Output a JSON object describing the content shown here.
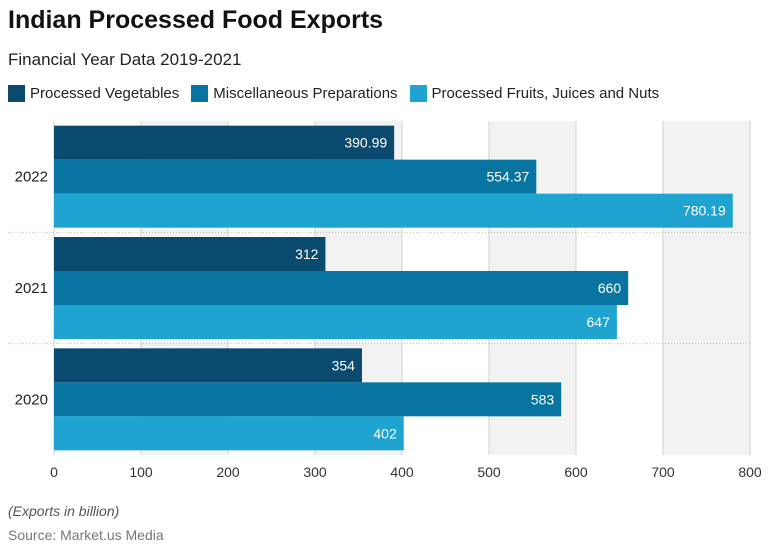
{
  "title": "Indian Processed Food Exports",
  "subtitle": "Financial Year Data 2019-2021",
  "footnote": "(Exports in billion)",
  "source": "Source: Market.us Media",
  "chart_data": {
    "type": "bar",
    "orientation": "horizontal",
    "categories": [
      "2022",
      "2021",
      "2020"
    ],
    "series": [
      {
        "name": "Processed Vegetables",
        "color": "#0b4a6f",
        "values": [
          390.99,
          312,
          354
        ],
        "labels": [
          "390.99",
          "312",
          "354"
        ]
      },
      {
        "name": "Miscellaneous Preparations",
        "color": "#0874a1",
        "values": [
          554.37,
          660,
          583
        ],
        "labels": [
          "554.37",
          "660",
          "583"
        ]
      },
      {
        "name": "Processed Fruits, Juices and Nuts",
        "color": "#1fa3d1",
        "values": [
          780.19,
          647,
          402
        ],
        "labels": [
          "780.19",
          "647",
          "402"
        ]
      }
    ],
    "xlim": [
      0,
      800
    ],
    "xticks": [
      "0",
      "100",
      "200",
      "300",
      "400",
      "500",
      "600",
      "700",
      "800"
    ],
    "grid": true,
    "legend_position": "top-left"
  }
}
